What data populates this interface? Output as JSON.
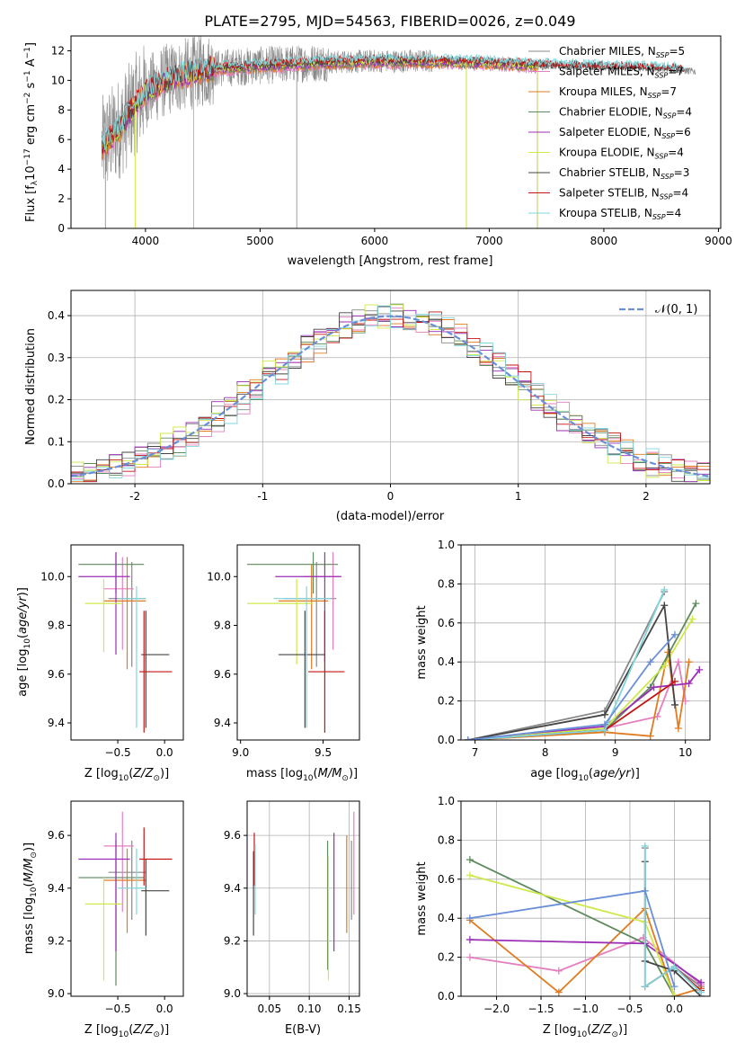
{
  "title": "PLATE=2795, MJD=54563, FIBERID=0026, z=0.049",
  "colors": {
    "Chabrier MILES": "#888888",
    "Salpeter MILES": "#e57fbf",
    "Kroupa MILES": "#e07b1f",
    "Chabrier ELODIE": "#5e8a5e",
    "Salpeter ELODIE": "#9b2fb5",
    "Kroupa ELODIE": "#cfe84a",
    "Chabrier STELIB": "#444444",
    "Salpeter STELIB": "#c41515",
    "Kroupa STELIB": "#7fd6dc",
    "gauss": "#6a8fd8"
  },
  "chart_data": [
    {
      "id": "spectrum",
      "type": "line",
      "xlabel": "wavelength [Angstrom, rest frame]",
      "ylabel": "Flux [f_λ10^-17 erg cm^-2 s^-1 A^-1]",
      "xlim": [
        3350,
        9020
      ],
      "ylim": [
        0,
        13
      ],
      "xticks": [
        4000,
        5000,
        6000,
        7000,
        8000,
        9000
      ],
      "yticks": [
        0,
        2,
        4,
        6,
        8,
        10,
        12
      ],
      "grid": false,
      "legend_position": "top-right",
      "legend": [
        {
          "label": "Chabrier MILES",
          "n": "5"
        },
        {
          "label": "Salpeter MILES",
          "n": "7"
        },
        {
          "label": "Kroupa MILES",
          "n": "7"
        },
        {
          "label": "Chabrier ELODIE",
          "n": "4"
        },
        {
          "label": "Salpeter ELODIE",
          "n": "6"
        },
        {
          "label": "Kroupa ELODIE",
          "n": "4"
        },
        {
          "label": "Chabrier STELIB",
          "n": "3"
        },
        {
          "label": "Salpeter STELIB",
          "n": "4"
        },
        {
          "label": "Kroupa STELIB",
          "n": "4"
        }
      ],
      "continuum": {
        "x": [
          3620,
          3700,
          3800,
          3900,
          4000,
          4200,
          4400,
          4600,
          5000,
          5500,
          6000,
          6500,
          7000,
          7500,
          8000,
          8500,
          8800
        ],
        "y": [
          5.5,
          6.2,
          7.0,
          8.3,
          9.2,
          10.1,
          10.5,
          10.8,
          11.0,
          11.2,
          11.3,
          11.3,
          11.2,
          11.0,
          10.9,
          10.8,
          10.6
        ]
      },
      "observed_range": [
        3620,
        8800
      ],
      "model_range": [
        3620,
        7420
      ],
      "stelib_range": [
        3620,
        8700
      ]
    },
    {
      "id": "residuals",
      "type": "histogram",
      "xlabel": "(data-model)/error",
      "ylabel": "Normed distribution",
      "xlim": [
        -2.5,
        2.5
      ],
      "ylim": [
        0,
        0.46
      ],
      "xticks": [
        -2,
        -1,
        0,
        1,
        2
      ],
      "yticks": [
        0.0,
        0.1,
        0.2,
        0.3,
        0.4
      ],
      "grid": true,
      "legend_position": "top-right",
      "gauss_label": "𝒩(0, 1)",
      "bin_width": 0.1,
      "bins_start": -2.5
    },
    {
      "id": "age_vs_Z",
      "type": "errorbar",
      "xlabel": "Z [log10(Z/Z⊙)]",
      "ylabel": "age [log10(age/yr)]",
      "xlim": [
        -1.0,
        0.2
      ],
      "ylim": [
        9.33,
        10.13
      ],
      "xticks": [
        -0.5,
        0.0
      ],
      "xtick_labels": [
        "−0.5",
        "0.0"
      ],
      "yticks": [
        9.4,
        9.6,
        9.8,
        10.0
      ],
      "grid": false,
      "points": [
        {
          "model": "Chabrier MILES",
          "x": -0.35,
          "y": 9.91,
          "xerr": [
            0.25,
            0.15
          ],
          "yerr": [
            0.28,
            0.15
          ]
        },
        {
          "model": "Salpeter MILES",
          "x": -0.45,
          "y": 9.95,
          "xerr": [
            0.2,
            0.12
          ],
          "yerr": [
            0.25,
            0.13
          ]
        },
        {
          "model": "Kroupa MILES",
          "x": -0.4,
          "y": 9.9,
          "xerr": [
            0.25,
            0.2
          ],
          "yerr": [
            0.28,
            0.18
          ]
        },
        {
          "model": "Chabrier ELODIE",
          "x": -0.52,
          "y": 10.05,
          "xerr": [
            0.4,
            0.3
          ],
          "yerr": [
            0.12,
            0.05
          ]
        },
        {
          "model": "Salpeter ELODIE",
          "x": -0.52,
          "y": 10.0,
          "xerr": [
            0.4,
            0.15
          ],
          "yerr": [
            0.32,
            0.1
          ]
        },
        {
          "model": "Kroupa ELODIE",
          "x": -0.65,
          "y": 9.89,
          "xerr": [
            0.2,
            0.2
          ],
          "yerr": [
            0.2,
            0.1
          ]
        },
        {
          "model": "Chabrier STELIB",
          "x": -0.2,
          "y": 9.68,
          "xerr": [
            0.05,
            0.25
          ],
          "yerr": [
            0.3,
            0.18
          ]
        },
        {
          "model": "Salpeter STELIB",
          "x": -0.22,
          "y": 9.61,
          "xerr": [
            0.05,
            0.3
          ],
          "yerr": [
            0.25,
            0.25
          ]
        },
        {
          "model": "Kroupa STELIB",
          "x": -0.3,
          "y": 9.91,
          "xerr": [
            0.2,
            0.1
          ],
          "yerr": [
            0.53,
            0.05
          ]
        }
      ]
    },
    {
      "id": "age_vs_mass",
      "type": "errorbar",
      "xlabel": "mass [log10(M/M⊙)]",
      "ylabel": "",
      "xlim": [
        8.98,
        9.72
      ],
      "ylim": [
        9.33,
        10.13
      ],
      "xticks": [
        9.0,
        9.5
      ],
      "yticks": [
        9.4,
        9.6,
        9.8,
        10.0
      ],
      "grid": false,
      "points": [
        {
          "model": "Chabrier MILES",
          "x": 9.46,
          "y": 9.91,
          "xerr": [
            0.2,
            0.12
          ],
          "yerr": [
            0.28,
            0.15
          ]
        },
        {
          "model": "Salpeter MILES",
          "x": 9.56,
          "y": 10.0,
          "xerr": [
            0.18,
            0.05
          ],
          "yerr": [
            0.3,
            0.1
          ]
        },
        {
          "model": "Kroupa MILES",
          "x": 9.43,
          "y": 9.9,
          "xerr": [
            0.2,
            0.1
          ],
          "yerr": [
            0.28,
            0.15
          ]
        },
        {
          "model": "Chabrier ELODIE",
          "x": 9.44,
          "y": 10.05,
          "xerr": [
            0.4,
            0.15
          ],
          "yerr": [
            0.12,
            0.05
          ]
        },
        {
          "model": "Salpeter ELODIE",
          "x": 9.51,
          "y": 10.0,
          "xerr": [
            0.3,
            0.1
          ],
          "yerr": [
            0.35,
            0.1
          ]
        },
        {
          "model": "Kroupa ELODIE",
          "x": 9.34,
          "y": 9.89,
          "xerr": [
            0.3,
            0.1
          ],
          "yerr": [
            0.25,
            0.1
          ]
        },
        {
          "model": "Chabrier STELIB",
          "x": 9.39,
          "y": 9.68,
          "xerr": [
            0.16,
            0.12
          ],
          "yerr": [
            0.3,
            0.18
          ]
        },
        {
          "model": "Salpeter STELIB",
          "x": 9.51,
          "y": 9.61,
          "xerr": [
            0.1,
            0.12
          ],
          "yerr": [
            0.25,
            0.25
          ]
        },
        {
          "model": "Kroupa STELIB",
          "x": 9.4,
          "y": 9.91,
          "xerr": [
            0.2,
            0.15
          ],
          "yerr": [
            0.53,
            0.05
          ]
        }
      ]
    },
    {
      "id": "mw_vs_age",
      "type": "line",
      "xlabel": "age  [log10(age/yr)]",
      "ylabel": "mass weight",
      "xlim": [
        6.8,
        10.35
      ],
      "ylim": [
        0,
        1.0
      ],
      "xticks": [
        7,
        8,
        9,
        10
      ],
      "yticks": [
        0.0,
        0.2,
        0.4,
        0.6,
        0.8,
        1.0
      ],
      "grid": true,
      "series": [
        {
          "model": "Chabrier MILES",
          "x": [
            6.9,
            8.85,
            9.7
          ],
          "y": [
            0.0,
            0.15,
            0.76
          ]
        },
        {
          "model": "Salpeter MILES",
          "x": [
            6.9,
            8.85,
            9.6,
            9.9,
            10.0
          ],
          "y": [
            0.0,
            0.06,
            0.12,
            0.4,
            0.2
          ]
        },
        {
          "model": "Kroupa MILES",
          "x": [
            6.9,
            8.85,
            9.5,
            9.75,
            9.9,
            10.05
          ],
          "y": [
            0.0,
            0.04,
            0.02,
            0.45,
            0.06,
            0.4
          ]
        },
        {
          "model": "Chabrier ELODIE",
          "x": [
            6.9,
            8.85,
            9.5,
            10.15
          ],
          "y": [
            0.0,
            0.05,
            0.27,
            0.7
          ]
        },
        {
          "model": "Salpeter ELODIE",
          "x": [
            6.9,
            8.85,
            9.55,
            10.05,
            10.2
          ],
          "y": [
            0.0,
            0.07,
            0.27,
            0.29,
            0.36
          ]
        },
        {
          "model": "Kroupa ELODIE",
          "x": [
            6.9,
            8.85,
            9.7,
            10.1
          ],
          "y": [
            0.0,
            0.06,
            0.38,
            0.62
          ]
        },
        {
          "model": "Chabrier STELIB",
          "x": [
            6.9,
            8.85,
            9.7,
            9.85
          ],
          "y": [
            0.0,
            0.13,
            0.69,
            0.18
          ]
        },
        {
          "model": "Salpeter STELIB",
          "x": [
            6.9,
            8.85,
            9.85
          ],
          "y": [
            0.0,
            0.05,
            0.3
          ]
        },
        {
          "model": "Kroupa STELIB",
          "x": [
            6.9,
            8.85,
            9.7
          ],
          "y": [
            0.0,
            0.05,
            0.77
          ]
        },
        {
          "model": "gauss",
          "x": [
            6.9,
            8.85,
            9.5,
            9.85
          ],
          "y": [
            0.0,
            0.08,
            0.4,
            0.54
          ]
        }
      ]
    },
    {
      "id": "mass_vs_Z",
      "type": "errorbar",
      "xlabel": "Z [log10(Z/Z⊙)]",
      "ylabel": "mass [log10(M/M⊙)]",
      "xlim": [
        -1.0,
        0.2
      ],
      "ylim": [
        8.99,
        9.73
      ],
      "xticks": [
        -0.5,
        0.0
      ],
      "xtick_labels": [
        "−0.5",
        "0.0"
      ],
      "yticks": [
        9.0,
        9.2,
        9.4,
        9.6
      ],
      "grid": false,
      "points": [
        {
          "model": "Chabrier MILES",
          "x": -0.35,
          "y": 9.46,
          "xerr": [
            0.25,
            0.15
          ],
          "yerr": [
            0.18,
            0.12
          ]
        },
        {
          "model": "Salpeter MILES",
          "x": -0.45,
          "y": 9.56,
          "xerr": [
            0.2,
            0.12
          ],
          "yerr": [
            0.25,
            0.13
          ]
        },
        {
          "model": "Kroupa MILES",
          "x": -0.4,
          "y": 9.43,
          "xerr": [
            0.25,
            0.2
          ],
          "yerr": [
            0.2,
            0.12
          ]
        },
        {
          "model": "Chabrier ELODIE",
          "x": -0.52,
          "y": 9.44,
          "xerr": [
            0.4,
            0.3
          ],
          "yerr": [
            0.41,
            0.14
          ]
        },
        {
          "model": "Salpeter ELODIE",
          "x": -0.52,
          "y": 9.51,
          "xerr": [
            0.4,
            0.15
          ],
          "yerr": [
            0.35,
            0.1
          ]
        },
        {
          "model": "Kroupa ELODIE",
          "x": -0.65,
          "y": 9.34,
          "xerr": [
            0.2,
            0.2
          ],
          "yerr": [
            0.29,
            0.1
          ]
        },
        {
          "model": "Chabrier STELIB",
          "x": -0.2,
          "y": 9.39,
          "xerr": [
            0.05,
            0.25
          ],
          "yerr": [
            0.17,
            0.12
          ]
        },
        {
          "model": "Salpeter STELIB",
          "x": -0.22,
          "y": 9.51,
          "xerr": [
            0.05,
            0.3
          ],
          "yerr": [
            0.1,
            0.12
          ]
        },
        {
          "model": "Kroupa STELIB",
          "x": -0.3,
          "y": 9.4,
          "xerr": [
            0.2,
            0.1
          ],
          "yerr": [
            0.1,
            0.15
          ]
        }
      ]
    },
    {
      "id": "mass_vs_ebv",
      "type": "errorbar",
      "xlabel": "E(B-V)",
      "ylabel": "",
      "xlim": [
        0.022,
        0.163
      ],
      "ylim": [
        8.99,
        9.73
      ],
      "xticks": [
        0.05,
        0.1,
        0.15
      ],
      "xtick_labels": [
        "0.05",
        "0.10",
        "0.15"
      ],
      "yticks": [
        9.0,
        9.2,
        9.4,
        9.6
      ],
      "grid": true,
      "points": [
        {
          "model": "Chabrier MILES",
          "x": 0.153,
          "y": 9.46,
          "yerr": [
            0.18,
            0.12
          ]
        },
        {
          "model": "Salpeter MILES",
          "x": 0.156,
          "y": 9.5,
          "yerr": [
            0.2,
            0.19
          ]
        },
        {
          "model": "Kroupa MILES",
          "x": 0.147,
          "y": 9.43,
          "yerr": [
            0.2,
            0.17
          ]
        },
        {
          "model": "Chabrier ELODIE",
          "x": 0.123,
          "y": 9.44,
          "yerr": [
            0.35,
            0.14
          ]
        },
        {
          "model": "Salpeter ELODIE",
          "x": 0.131,
          "y": 9.51,
          "yerr": [
            0.35,
            0.1
          ]
        },
        {
          "model": "Kroupa ELODIE",
          "x": 0.124,
          "y": 9.34,
          "yerr": [
            0.29,
            0.18
          ]
        },
        {
          "model": "Chabrier STELIB",
          "x": 0.03,
          "y": 9.39,
          "yerr": [
            0.17,
            0.15
          ]
        },
        {
          "model": "Salpeter STELIB",
          "x": 0.031,
          "y": 9.51,
          "yerr": [
            0.1,
            0.1
          ]
        },
        {
          "model": "Kroupa STELIB",
          "x": 0.032,
          "y": 9.4,
          "yerr": [
            0.1,
            0.17
          ]
        }
      ]
    },
    {
      "id": "mw_vs_Z",
      "type": "line",
      "xlabel": "Z [log10(Z/Z⊙)]",
      "ylabel": "mass weight",
      "xlim": [
        -2.4,
        0.4
      ],
      "ylim": [
        0,
        1.0
      ],
      "xticks": [
        -2.0,
        -1.5,
        -1.0,
        -0.5,
        0.0
      ],
      "xtick_labels": [
        "−2.0",
        "−1.5",
        "−1.0",
        "−0.5",
        "0.0"
      ],
      "yticks": [
        0.0,
        0.2,
        0.4,
        0.6,
        0.8,
        1.0
      ],
      "grid": true,
      "series": [
        {
          "model": "Chabrier MILES",
          "x": [
            -0.33,
            -0.33,
            0.0,
            0.3
          ],
          "y": [
            0.76,
            0.05,
            0.15,
            0.05
          ]
        },
        {
          "model": "Salpeter MILES",
          "x": [
            -2.3,
            -1.3,
            -0.35,
            0.3
          ],
          "y": [
            0.2,
            0.13,
            0.3,
            0.06
          ]
        },
        {
          "model": "Kroupa MILES",
          "x": [
            -2.3,
            -1.3,
            -0.33,
            0.0,
            0.3
          ],
          "y": [
            0.39,
            0.02,
            0.45,
            0.0,
            0.04
          ]
        },
        {
          "model": "Chabrier ELODIE",
          "x": [
            -2.3,
            -0.33,
            0.0
          ],
          "y": [
            0.7,
            0.27,
            0.0
          ]
        },
        {
          "model": "Salpeter ELODIE",
          "x": [
            -2.3,
            -0.33,
            0.3
          ],
          "y": [
            0.29,
            0.27,
            0.07
          ]
        },
        {
          "model": "Kroupa ELODIE",
          "x": [
            -2.3,
            -0.33,
            0.0
          ],
          "y": [
            0.62,
            0.38,
            0.0
          ]
        },
        {
          "model": "Chabrier STELIB",
          "x": [
            -0.33,
            -0.33,
            0.0,
            0.3
          ],
          "y": [
            0.69,
            0.18,
            0.13,
            0.0
          ]
        },
        {
          "model": "Salpeter STELIB",
          "x": [
            -0.33,
            0.0,
            0.3
          ],
          "y": [
            0.05,
            0.15,
            0.03
          ]
        },
        {
          "model": "Kroupa STELIB",
          "x": [
            -0.33,
            -0.33,
            0.0,
            0.3
          ],
          "y": [
            0.77,
            0.05,
            0.15,
            0.02
          ]
        },
        {
          "model": "gauss",
          "x": [
            -2.3,
            -0.33,
            0.0
          ],
          "y": [
            0.4,
            0.54,
            0.05
          ]
        }
      ]
    }
  ]
}
